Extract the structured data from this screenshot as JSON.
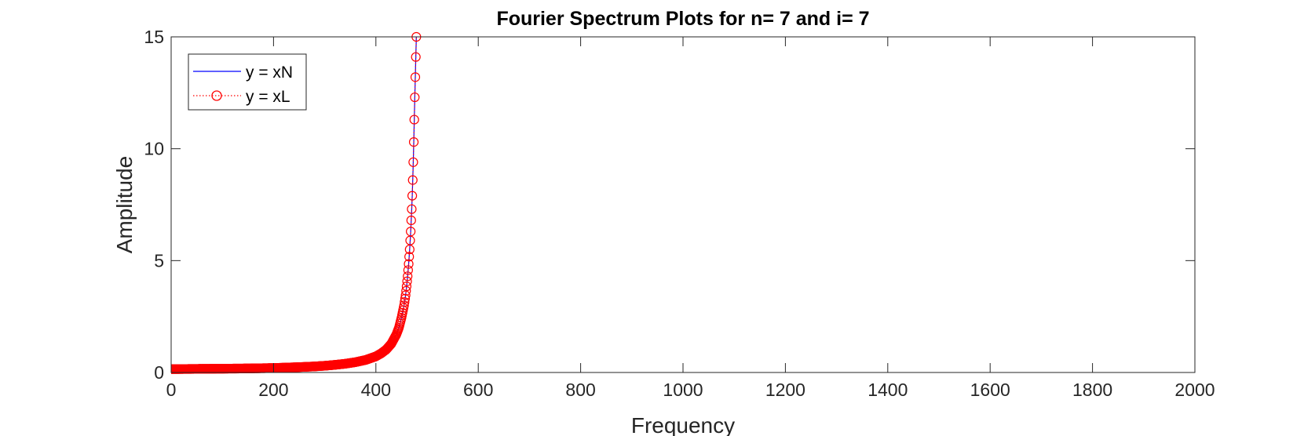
{
  "chart_data": {
    "type": "line",
    "title": "Fourier Spectrum Plots for n= 7 and i= 7",
    "xlabel": "Frequency",
    "ylabel": "Amplitude",
    "xlim": [
      0,
      2000
    ],
    "ylim": [
      0,
      15
    ],
    "xticks": [
      0,
      200,
      400,
      600,
      800,
      1000,
      1200,
      1400,
      1600,
      1800,
      2000
    ],
    "xtick_labels": [
      "0",
      "200",
      "400",
      "600",
      "800",
      "1000",
      "1200",
      "1400",
      "1600",
      "1800",
      "2000"
    ],
    "yticks": [
      0,
      5,
      10,
      15
    ],
    "ytick_labels": [
      "0",
      "5",
      "10",
      "15"
    ],
    "grid": false,
    "legend_position": "top-left",
    "series": [
      {
        "name": "y = xN",
        "style": "solid line",
        "color": "#0000ff",
        "x": [
          0,
          50,
          100,
          150,
          200,
          250,
          280,
          300,
          320,
          340,
          360,
          380,
          400,
          410,
          420,
          430,
          440,
          445,
          450,
          455,
          458,
          460,
          462,
          464,
          466,
          468,
          470,
          471,
          472,
          473,
          474,
          475,
          476,
          477,
          478,
          479
        ],
        "values": [
          0.15,
          0.16,
          0.17,
          0.18,
          0.2,
          0.24,
          0.27,
          0.3,
          0.34,
          0.39,
          0.46,
          0.56,
          0.72,
          0.85,
          1.02,
          1.28,
          1.7,
          2.0,
          2.45,
          3.0,
          3.45,
          3.85,
          4.3,
          4.85,
          5.5,
          6.3,
          7.3,
          7.9,
          8.6,
          9.4,
          10.3,
          11.3,
          12.3,
          13.2,
          14.1,
          15.0
        ]
      },
      {
        "name": "y = xL",
        "style": "dotted line with circle markers",
        "color": "#ff0000",
        "x": [
          0,
          50,
          100,
          150,
          200,
          250,
          280,
          300,
          320,
          340,
          360,
          380,
          400,
          410,
          420,
          430,
          440,
          445,
          450,
          455,
          458,
          460,
          462,
          464,
          466,
          468,
          470,
          471,
          472,
          473,
          474,
          475,
          476,
          477,
          478,
          479
        ],
        "values": [
          0.15,
          0.16,
          0.17,
          0.18,
          0.2,
          0.24,
          0.27,
          0.3,
          0.34,
          0.39,
          0.46,
          0.56,
          0.72,
          0.85,
          1.02,
          1.28,
          1.7,
          2.0,
          2.45,
          3.0,
          3.45,
          3.85,
          4.3,
          4.85,
          5.5,
          6.3,
          7.3,
          7.9,
          8.6,
          9.4,
          10.3,
          11.3,
          12.3,
          13.2,
          14.1,
          15.0
        ]
      }
    ]
  }
}
